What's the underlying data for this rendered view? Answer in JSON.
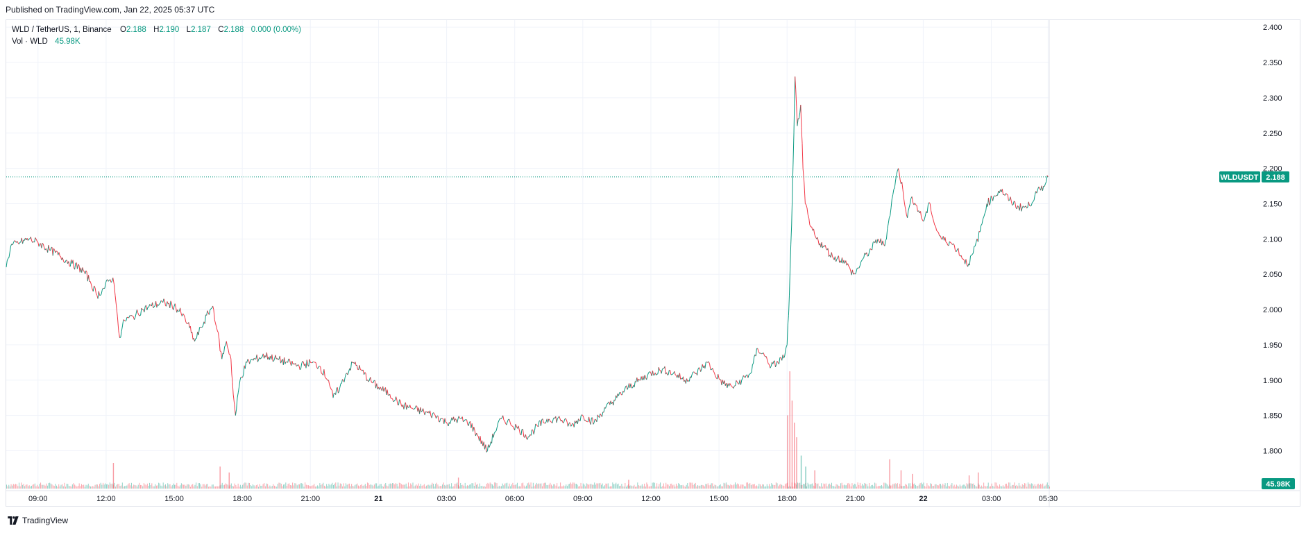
{
  "header": {
    "published": "Published on TradingView.com, Jan 22, 2025 05:37 UTC"
  },
  "legend": {
    "symbol": "WLD / TetherUS, 1, Binance",
    "o_label": "O",
    "o_value": "2.188",
    "h_label": "H",
    "h_value": "2.190",
    "l_label": "L",
    "l_value": "2.187",
    "c_label": "C",
    "c_value": "2.188",
    "change": "0.000 (0.00%)",
    "vol_label": "Vol · WLD",
    "vol_value": "45.98K"
  },
  "price_tag": {
    "symbol": "WLDUSDT",
    "value": "2.188"
  },
  "volume_tag": "45.98K",
  "footer": {
    "brand": "TradingView"
  },
  "colors": {
    "up": "#089981",
    "down": "#f23645",
    "grid": "#f0f3fa",
    "text": "#131722"
  },
  "chart_data": {
    "type": "line",
    "y_ticks": [
      "1.800",
      "1.850",
      "1.900",
      "1.950",
      "2.000",
      "2.050",
      "2.100",
      "2.150",
      "2.200",
      "2.250",
      "2.300",
      "2.350",
      "2.400"
    ],
    "ylim": [
      1.77,
      2.41
    ],
    "x_ticks": [
      {
        "label": "09:00",
        "hour": 9
      },
      {
        "label": "12:00",
        "hour": 12
      },
      {
        "label": "15:00",
        "hour": 15
      },
      {
        "label": "18:00",
        "hour": 18
      },
      {
        "label": "21:00",
        "hour": 21
      },
      {
        "label": "21",
        "hour": 24,
        "bold": true
      },
      {
        "label": "03:00",
        "hour": 27
      },
      {
        "label": "06:00",
        "hour": 30
      },
      {
        "label": "09:00",
        "hour": 33
      },
      {
        "label": "12:00",
        "hour": 36
      },
      {
        "label": "15:00",
        "hour": 39
      },
      {
        "label": "18:00",
        "hour": 42
      },
      {
        "label": "21:00",
        "hour": 45
      },
      {
        "label": "22",
        "hour": 48,
        "bold": true
      },
      {
        "label": "03:00",
        "hour": 51
      },
      {
        "label": "05:30",
        "hour": 53.5
      }
    ],
    "xlim_hours": [
      7.6,
      53.55
    ],
    "series": [
      {
        "points": [
          [
            7.6,
            2.06
          ],
          [
            7.8,
            2.09
          ],
          [
            8.2,
            2.095
          ],
          [
            8.6,
            2.1
          ],
          [
            9.0,
            2.095
          ],
          [
            9.5,
            2.085
          ],
          [
            10.0,
            2.075
          ],
          [
            10.5,
            2.065
          ],
          [
            11.0,
            2.055
          ],
          [
            11.3,
            2.04
          ],
          [
            11.6,
            2.02
          ],
          [
            11.9,
            2.03
          ],
          [
            12.1,
            2.04
          ],
          [
            12.3,
            2.045
          ],
          [
            12.4,
            2.02
          ],
          [
            12.5,
            1.99
          ],
          [
            12.6,
            1.96
          ],
          [
            12.8,
            1.985
          ],
          [
            13.2,
            1.99
          ],
          [
            13.6,
            2.0
          ],
          [
            14.0,
            2.005
          ],
          [
            14.5,
            2.01
          ],
          [
            15.0,
            2.005
          ],
          [
            15.3,
            1.995
          ],
          [
            15.6,
            1.98
          ],
          [
            15.9,
            1.955
          ],
          [
            16.2,
            1.975
          ],
          [
            16.5,
            1.995
          ],
          [
            16.7,
            2.005
          ],
          [
            16.9,
            1.97
          ],
          [
            17.1,
            1.93
          ],
          [
            17.3,
            1.955
          ],
          [
            17.5,
            1.93
          ],
          [
            17.6,
            1.88
          ],
          [
            17.7,
            1.85
          ],
          [
            17.9,
            1.9
          ],
          [
            18.2,
            1.925
          ],
          [
            18.6,
            1.93
          ],
          [
            19.0,
            1.935
          ],
          [
            19.5,
            1.93
          ],
          [
            20.0,
            1.925
          ],
          [
            20.5,
            1.92
          ],
          [
            21.0,
            1.925
          ],
          [
            21.4,
            1.92
          ],
          [
            21.8,
            1.9
          ],
          [
            22.0,
            1.875
          ],
          [
            22.3,
            1.89
          ],
          [
            22.6,
            1.91
          ],
          [
            22.9,
            1.925
          ],
          [
            23.2,
            1.915
          ],
          [
            23.6,
            1.9
          ],
          [
            24.0,
            1.89
          ],
          [
            24.5,
            1.88
          ],
          [
            25.0,
            1.865
          ],
          [
            25.5,
            1.86
          ],
          [
            26.0,
            1.855
          ],
          [
            26.5,
            1.85
          ],
          [
            27.0,
            1.84
          ],
          [
            27.5,
            1.845
          ],
          [
            28.0,
            1.84
          ],
          [
            28.4,
            1.82
          ],
          [
            28.8,
            1.8
          ],
          [
            29.1,
            1.825
          ],
          [
            29.4,
            1.845
          ],
          [
            29.8,
            1.84
          ],
          [
            30.2,
            1.83
          ],
          [
            30.6,
            1.82
          ],
          [
            31.0,
            1.835
          ],
          [
            31.5,
            1.845
          ],
          [
            32.0,
            1.845
          ],
          [
            32.5,
            1.835
          ],
          [
            33.0,
            1.85
          ],
          [
            33.5,
            1.84
          ],
          [
            34.0,
            1.86
          ],
          [
            34.5,
            1.875
          ],
          [
            35.0,
            1.89
          ],
          [
            35.5,
            1.9
          ],
          [
            36.0,
            1.91
          ],
          [
            36.5,
            1.915
          ],
          [
            37.0,
            1.91
          ],
          [
            37.5,
            1.9
          ],
          [
            38.0,
            1.91
          ],
          [
            38.5,
            1.925
          ],
          [
            38.8,
            1.91
          ],
          [
            39.2,
            1.895
          ],
          [
            39.6,
            1.89
          ],
          [
            40.0,
            1.9
          ],
          [
            40.4,
            1.91
          ],
          [
            40.7,
            1.945
          ],
          [
            41.0,
            1.935
          ],
          [
            41.3,
            1.92
          ],
          [
            41.6,
            1.925
          ],
          [
            41.9,
            1.935
          ],
          [
            42.0,
            1.95
          ],
          [
            42.1,
            2.02
          ],
          [
            42.2,
            2.12
          ],
          [
            42.3,
            2.25
          ],
          [
            42.35,
            2.33
          ],
          [
            42.45,
            2.26
          ],
          [
            42.6,
            2.29
          ],
          [
            42.7,
            2.2
          ],
          [
            42.8,
            2.15
          ],
          [
            43.0,
            2.12
          ],
          [
            43.3,
            2.1
          ],
          [
            43.6,
            2.09
          ],
          [
            44.0,
            2.075
          ],
          [
            44.5,
            2.07
          ],
          [
            44.8,
            2.055
          ],
          [
            45.0,
            2.05
          ],
          [
            45.3,
            2.07
          ],
          [
            45.7,
            2.085
          ],
          [
            46.0,
            2.1
          ],
          [
            46.3,
            2.09
          ],
          [
            46.5,
            2.13
          ],
          [
            46.7,
            2.17
          ],
          [
            46.9,
            2.2
          ],
          [
            47.1,
            2.17
          ],
          [
            47.3,
            2.13
          ],
          [
            47.5,
            2.16
          ],
          [
            47.8,
            2.14
          ],
          [
            48.0,
            2.125
          ],
          [
            48.3,
            2.15
          ],
          [
            48.5,
            2.12
          ],
          [
            48.8,
            2.1
          ],
          [
            49.2,
            2.095
          ],
          [
            49.5,
            2.085
          ],
          [
            49.8,
            2.07
          ],
          [
            50.0,
            2.065
          ],
          [
            50.2,
            2.08
          ],
          [
            50.5,
            2.11
          ],
          [
            50.8,
            2.15
          ],
          [
            51.1,
            2.16
          ],
          [
            51.4,
            2.17
          ],
          [
            51.8,
            2.155
          ],
          [
            52.2,
            2.145
          ],
          [
            52.6,
            2.145
          ],
          [
            53.0,
            2.165
          ],
          [
            53.3,
            2.175
          ],
          [
            53.5,
            2.188
          ]
        ]
      }
    ],
    "last_price": 2.188,
    "volume": {
      "ylim": [
        0,
        160
      ],
      "spikes": [
        [
          12.3,
          35
        ],
        [
          17.0,
          30
        ],
        [
          17.4,
          22
        ],
        [
          42.0,
          100
        ],
        [
          42.1,
          160
        ],
        [
          42.2,
          120
        ],
        [
          42.3,
          90
        ],
        [
          42.4,
          70
        ],
        [
          42.6,
          45
        ],
        [
          42.8,
          30
        ],
        [
          43.2,
          25
        ],
        [
          46.5,
          40
        ],
        [
          47.0,
          25
        ],
        [
          47.5,
          20
        ],
        [
          50.0,
          18
        ],
        [
          50.4,
          22
        ],
        [
          27.5,
          15
        ],
        [
          35.0,
          12
        ]
      ],
      "baseline": 6,
      "last": 45.98
    }
  }
}
